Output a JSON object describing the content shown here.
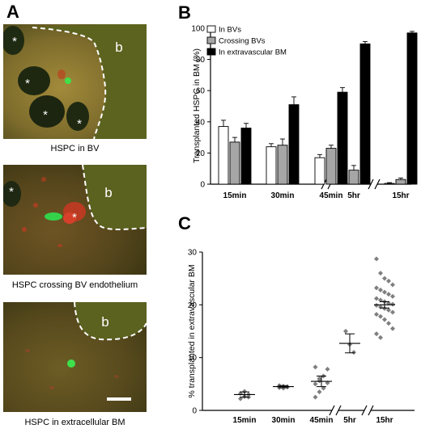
{
  "panels": {
    "a": {
      "letter": "A"
    },
    "b": {
      "letter": "B"
    },
    "c": {
      "letter": "C"
    }
  },
  "micrographs": [
    {
      "caption": "HSPC in BV",
      "labels": [
        "*",
        "*",
        "*",
        "*",
        "b"
      ]
    },
    {
      "caption": "HSPC crossing BV endothelium",
      "labels": [
        "*",
        "*",
        "b"
      ]
    },
    {
      "caption": "HSPC in extracellular BM",
      "labels": [
        "b"
      ]
    }
  ],
  "chart_data": [
    {
      "type": "bar",
      "panel": "B",
      "categories": [
        "15min",
        "30min",
        "45min",
        "5hr",
        "15hr"
      ],
      "axis_breaks_before": [
        "5hr",
        "15hr"
      ],
      "ylabel": "Transplanted HSPC in BM (%)",
      "ylim": [
        0,
        100
      ],
      "yticks": [
        0,
        20,
        40,
        60,
        80,
        100
      ],
      "legend_position": "top-left",
      "series": [
        {
          "name": "In BVs",
          "color": "#ffffff",
          "values": [
            37,
            24,
            17,
            2,
            0.5
          ],
          "errors": [
            4,
            2,
            2,
            1,
            0.5
          ]
        },
        {
          "name": "Crossing BVs",
          "color": "#a6a6a6",
          "values": [
            27,
            25,
            23,
            9,
            3
          ],
          "errors": [
            3,
            4,
            2,
            3,
            1
          ]
        },
        {
          "name": "In extravascular BM",
          "color": "#000000",
          "values": [
            36,
            51,
            59,
            90,
            97
          ],
          "errors": [
            3,
            5,
            3,
            1.5,
            1
          ]
        }
      ]
    },
    {
      "type": "scatter",
      "panel": "C",
      "categories": [
        "15min",
        "30min",
        "45min",
        "5hr",
        "15hr"
      ],
      "axis_breaks_before": [
        "5hr",
        "15hr"
      ],
      "ylabel": "% transplanted in extravascular BM",
      "ylim": [
        0,
        30
      ],
      "yticks": [
        0,
        10,
        20,
        30
      ],
      "marker_color": "#7f7f7f",
      "groups": [
        {
          "category": "15min",
          "mean": 3.0,
          "sem": 0.5,
          "points": [
            2.2,
            2.6,
            3.0,
            3.2,
            3.6,
            2.5
          ]
        },
        {
          "category": "30min",
          "mean": 4.5,
          "sem": 0.2,
          "points": [
            4.3,
            4.6,
            4.4,
            4.7,
            4.2,
            4.5
          ]
        },
        {
          "category": "45min",
          "mean": 5.5,
          "sem": 1.0,
          "points": [
            2.5,
            3.5,
            4.2,
            5.2,
            5.0,
            6.0,
            6.5,
            7.8,
            8.2,
            5.6
          ]
        },
        {
          "category": "5hr",
          "mean": 12.7,
          "sem": 1.8,
          "points": [
            15.0,
            12.5,
            11.0
          ]
        },
        {
          "category": "15hr",
          "mean": 20.0,
          "sem": 0.6,
          "points": [
            28.7,
            26.0,
            25.0,
            24.5,
            23.8,
            23.2,
            22.8,
            22.4,
            22.0,
            21.6,
            21.2,
            20.9,
            20.6,
            20.3,
            20.1,
            19.9,
            19.6,
            19.3,
            19.0,
            18.6,
            18.2,
            17.8,
            17.2,
            16.5,
            15.5,
            14.5,
            13.8
          ]
        }
      ]
    }
  ]
}
